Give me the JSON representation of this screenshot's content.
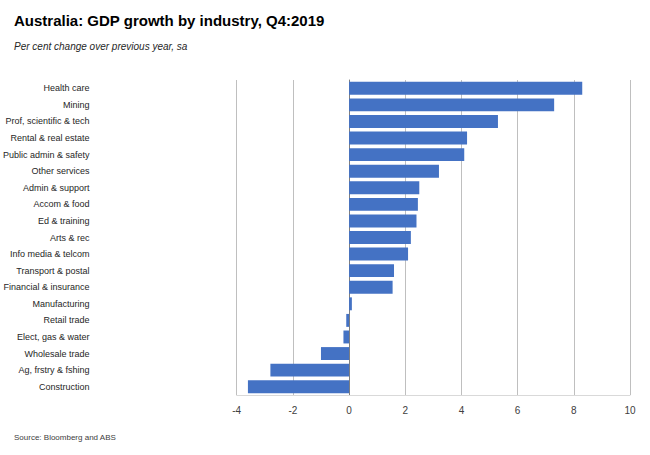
{
  "chart_data": {
    "type": "bar",
    "orientation": "horizontal",
    "title": "Australia: GDP growth by industry, Q4:2019",
    "subtitle": "Per cent change over previous year, sa",
    "source": "Source: Bloomberg and ABS",
    "categories": [
      "Health care",
      "Mining",
      "Prof, scientific & tech",
      "Rental & real estate",
      "Public admin & safety",
      "Other services",
      "Admin & support",
      "Accom & food",
      "Ed & training",
      "Arts & rec",
      "Info media & telcom",
      "Transport & postal",
      "Financial & insurance",
      "Manufacturing",
      "Retail trade",
      "Elect, gas & water",
      "Wholesale trade",
      "Ag, frstry & fshing",
      "Construction"
    ],
    "values": [
      8.3,
      7.3,
      5.3,
      4.2,
      4.1,
      3.2,
      2.5,
      2.45,
      2.4,
      2.2,
      2.1,
      1.6,
      1.55,
      0.1,
      -0.1,
      -0.2,
      -1.0,
      -2.8,
      -3.6
    ],
    "color": "#4472c4",
    "xlim": [
      -4,
      10
    ],
    "xticks": [
      -4,
      -2,
      0,
      2,
      4,
      6,
      8,
      10
    ],
    "grid": true
  }
}
